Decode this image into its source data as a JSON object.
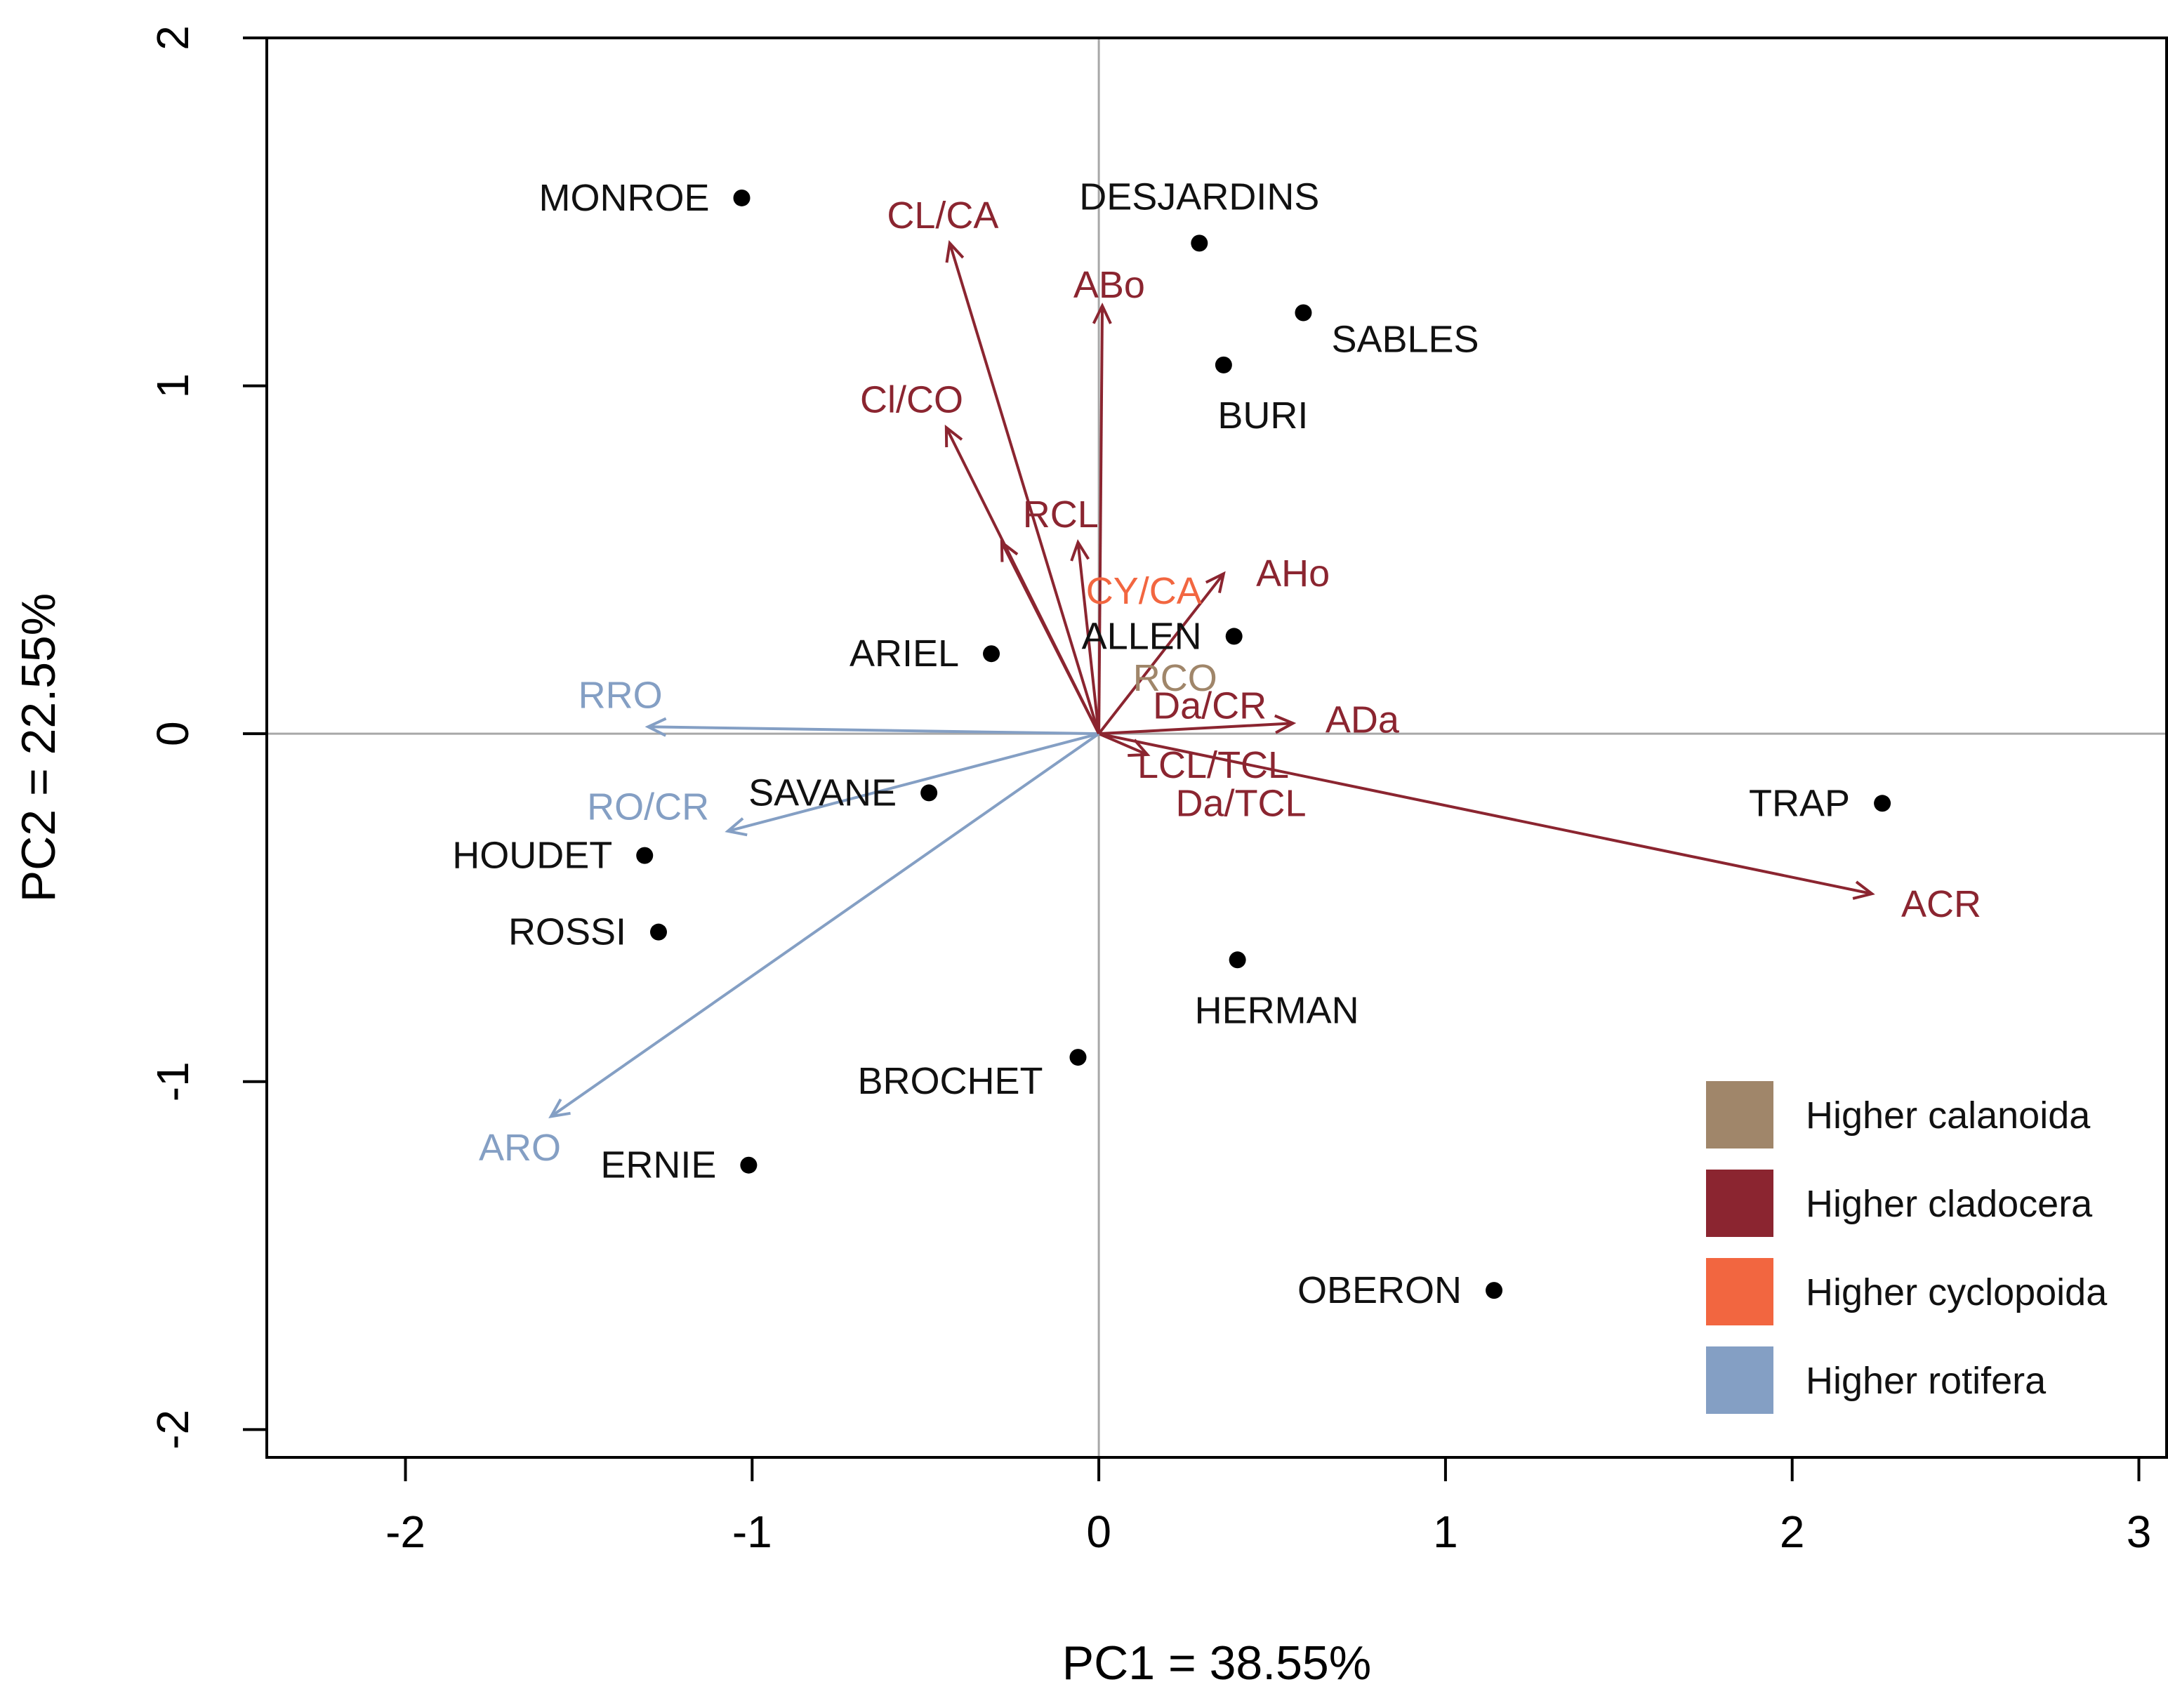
{
  "chart_data": {
    "type": "scatter",
    "subtype": "pca-biplot",
    "title": "",
    "xlabel": "PC1 = 38.55%",
    "ylabel": "PC2 = 22.55%",
    "xlim": [
      -2.4,
      3.08
    ],
    "ylim": [
      -2.08,
      2.0
    ],
    "xticks": [
      -2,
      -1,
      0,
      1,
      2,
      3
    ],
    "yticks": [
      -2,
      -1,
      0,
      1,
      2
    ],
    "reference_lines": {
      "x": 0,
      "y": 0
    },
    "sites": [
      {
        "name": "MONROE",
        "x": -1.03,
        "y": 1.54,
        "label_side": "left"
      },
      {
        "name": "DESJARDINS",
        "x": 0.29,
        "y": 1.41,
        "label_side": "above"
      },
      {
        "name": "SABLES",
        "x": 0.59,
        "y": 1.21,
        "label_side": "below-right"
      },
      {
        "name": "BURI",
        "x": 0.36,
        "y": 1.06,
        "label_side": "below"
      },
      {
        "name": "ARIEL",
        "x": -0.31,
        "y": 0.23,
        "label_side": "left"
      },
      {
        "name": "ALLEN",
        "x": 0.39,
        "y": 0.28,
        "label_side": "left"
      },
      {
        "name": "SAVANE",
        "x": -0.49,
        "y": -0.17,
        "label_side": "left"
      },
      {
        "name": "TRAP",
        "x": 2.26,
        "y": -0.2,
        "label_side": "left"
      },
      {
        "name": "HOUDET",
        "x": -1.31,
        "y": -0.35,
        "label_side": "left"
      },
      {
        "name": "ROSSI",
        "x": -1.27,
        "y": -0.57,
        "label_side": "left"
      },
      {
        "name": "HERMAN",
        "x": 0.4,
        "y": -0.65,
        "label_side": "below"
      },
      {
        "name": "BROCHET",
        "x": -0.06,
        "y": -0.93,
        "label_side": "below-left"
      },
      {
        "name": "ERNIE",
        "x": -1.01,
        "y": -1.24,
        "label_side": "left"
      },
      {
        "name": "OBERON",
        "x": 1.14,
        "y": -1.6,
        "label_side": "left"
      }
    ],
    "loadings": [
      {
        "name": "CL/CA",
        "x": -0.43,
        "y": 1.41,
        "group": "cladocera",
        "label_x": -0.45,
        "label_y": 1.49
      },
      {
        "name": "ABo",
        "x": 0.01,
        "y": 1.23,
        "group": "cladocera",
        "label_x": 0.03,
        "label_y": 1.29
      },
      {
        "name": "Cl/CO",
        "x": -0.44,
        "y": 0.88,
        "group": "cladocera",
        "label_x": -0.54,
        "label_y": 0.96
      },
      {
        "name": "RCL",
        "x": -0.06,
        "y": 0.55,
        "group": "cladocera",
        "label_x": -0.11,
        "label_y": 0.63
      },
      {
        "name": "CY/CA",
        "x": 0.0,
        "y": 0.0,
        "group": "cyclopoida",
        "label_x": 0.13,
        "label_y": 0.41
      },
      {
        "name": "AHo",
        "x": 0.36,
        "y": 0.46,
        "group": "cladocera",
        "label_x": 0.56,
        "label_y": 0.46
      },
      {
        "name": "RCO",
        "x": 0.0,
        "y": 0.0,
        "group": "calanoida",
        "label_x": 0.22,
        "label_y": 0.16
      },
      {
        "name": "Da/CR",
        "x": 0.0,
        "y": 0.0,
        "group": "cladocera",
        "label_x": 0.32,
        "label_y": 0.08
      },
      {
        "name": "ADa",
        "x": 0.56,
        "y": 0.03,
        "group": "cladocera",
        "label_x": 0.76,
        "label_y": 0.04
      },
      {
        "name": "LCL/TCL",
        "x": 0.14,
        "y": -0.06,
        "group": "cladocera",
        "label_x": 0.33,
        "label_y": -0.09
      },
      {
        "name": "Da/TCL",
        "x": 0.0,
        "y": 0.0,
        "group": "cladocera",
        "label_x": 0.41,
        "label_y": -0.2
      },
      {
        "name": "ACR",
        "x": 2.23,
        "y": -0.46,
        "group": "cladocera",
        "label_x": 2.43,
        "label_y": -0.49
      },
      {
        "name": "RRO",
        "x": -1.3,
        "y": 0.02,
        "group": "rotifera",
        "label_x": -1.38,
        "label_y": 0.11
      },
      {
        "name": "RO/CR",
        "x": -1.07,
        "y": -0.28,
        "group": "rotifera",
        "label_x": -1.3,
        "label_y": -0.21
      },
      {
        "name": "ARO",
        "x": -1.58,
        "y": -1.1,
        "group": "rotifera",
        "label_x": -1.67,
        "label_y": -1.19
      }
    ],
    "extra_arrows": [
      {
        "x": -0.28,
        "y": 0.55,
        "group": "cladocera"
      }
    ],
    "colors": {
      "calanoida": "#A0866A",
      "cladocera": "#8B2530",
      "cyclopoida": "#F26640",
      "rotifera": "#849FC4",
      "points": "#000000"
    },
    "legend": {
      "position": "bottom-right",
      "entries": [
        {
          "group": "calanoida",
          "label": "Higher calanoida"
        },
        {
          "group": "cladocera",
          "label": "Higher cladocera"
        },
        {
          "group": "cyclopoida",
          "label": "Higher cyclopoida"
        },
        {
          "group": "rotifera",
          "label": "Higher rotifera"
        }
      ]
    }
  }
}
